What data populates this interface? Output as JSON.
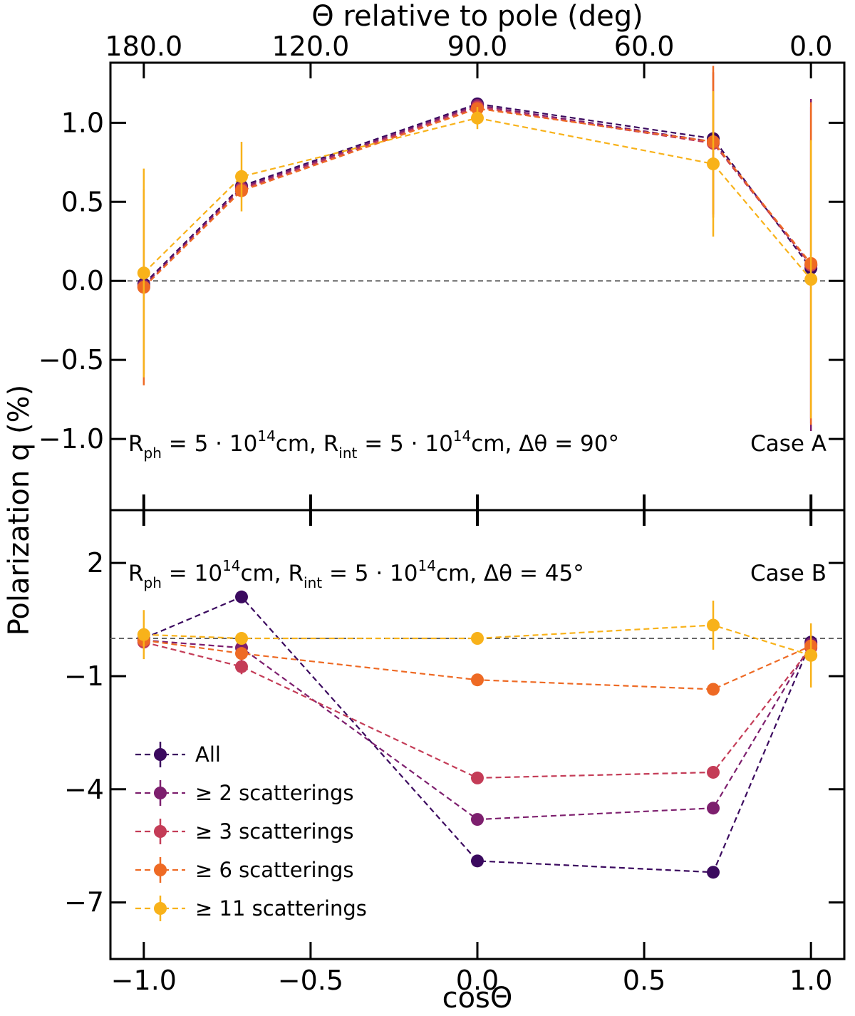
{
  "chart_data": {
    "type": "line",
    "xlabel": "cosΘ",
    "ylabel": "Polarization q (%)",
    "top_axis_label": "Θ relative to pole (deg)",
    "x": [
      -1.0,
      -0.707,
      0.0,
      0.707,
      1.0
    ],
    "xlim": [
      -1.1,
      1.1
    ],
    "x_ticks": [
      -1.0,
      -0.5,
      0.0,
      0.5,
      1.0
    ],
    "x_tick_labels": [
      "−1.0",
      "−0.5",
      "0.0",
      "0.5",
      "1.0"
    ],
    "top_ticks": [
      {
        "label": "180.0",
        "at": -1.0
      },
      {
        "label": "120.0",
        "at": -0.5
      },
      {
        "label": "90.0",
        "at": 0.0
      },
      {
        "label": "60.0",
        "at": 0.5
      },
      {
        "label": "0.0",
        "at": 1.0
      }
    ],
    "legend": {
      "position": "lower-left",
      "entries": [
        "All",
        "≥ 2 scatterings",
        "≥ 3 scatterings",
        "≥ 6 scatterings",
        "≥ 11 scatterings"
      ]
    },
    "series_colors": [
      "#3b0a5f",
      "#7d1f6e",
      "#c43c57",
      "#ee6a24",
      "#f8b21a"
    ],
    "panels": [
      {
        "name": "Case A",
        "ylim": [
          -1.45,
          1.38
        ],
        "y_ticks": [
          -1.0,
          -0.5,
          0.0,
          0.5,
          1.0
        ],
        "y_tick_labels": [
          "−1.0",
          "−0.5",
          "0.0",
          "0.5",
          "1.0"
        ],
        "annotation_parts": [
          "R",
          "ph",
          " = 5 · 10",
          "14",
          "cm,  R",
          "int",
          " = 5 · 10",
          "14",
          "cm,  Δθ = 90°"
        ],
        "case_label": "Case A",
        "series": [
          {
            "name": "All",
            "values": [
              -0.02,
              0.6,
              1.12,
              0.9,
              0.08
            ],
            "errors": [
              0.0,
              0.0,
              0.0,
              0.0,
              0.0
            ]
          },
          {
            "name": "≥ 2 scatterings",
            "values": [
              -0.03,
              0.59,
              1.11,
              0.88,
              0.1
            ],
            "errors": [
              0.0,
              0.0,
              0.0,
              0.0,
              1.05
            ]
          },
          {
            "name": "≥ 3 scatterings",
            "values": [
              -0.04,
              0.58,
              1.1,
              0.87,
              0.1
            ],
            "errors": [
              0.55,
              0.0,
              0.0,
              0.45,
              1.0
            ]
          },
          {
            "name": "≥ 6 scatterings",
            "values": [
              -0.04,
              0.57,
              1.09,
              0.88,
              0.11
            ],
            "errors": [
              0.62,
              0.0,
              0.0,
              0.48,
              1.02
            ]
          },
          {
            "name": "≥ 11 scatterings",
            "values": [
              0.05,
              0.66,
              1.03,
              0.74,
              0.01
            ],
            "errors": [
              0.66,
              0.22,
              0.07,
              0.46,
              0.88
            ]
          }
        ]
      },
      {
        "name": "Case B",
        "ylim": [
          -8.5,
          3.4
        ],
        "y_ticks": [
          2,
          -1,
          -4,
          -7
        ],
        "y_tick_labels": [
          "2",
          "−1",
          "−4",
          "−7"
        ],
        "annotation_parts": [
          "R",
          "ph",
          " = 10",
          "14",
          "cm,  R",
          "int",
          " = 5 · 10",
          "14",
          "cm,  Δθ = 45°"
        ],
        "case_label": "Case B",
        "series": [
          {
            "name": "All",
            "values": [
              0.0,
              1.1,
              -5.9,
              -6.2,
              -0.1
            ],
            "errors": [
              0.0,
              0.15,
              0.0,
              0.0,
              0.0
            ]
          },
          {
            "name": "≥ 2 scatterings",
            "values": [
              -0.05,
              -0.25,
              -4.8,
              -4.5,
              -0.15
            ],
            "errors": [
              0.0,
              0.0,
              0.0,
              0.0,
              0.0
            ]
          },
          {
            "name": "≥ 3 scatterings",
            "values": [
              -0.1,
              -0.75,
              -3.7,
              -3.55,
              -0.25
            ],
            "errors": [
              0.0,
              0.2,
              0.0,
              0.0,
              0.0
            ]
          },
          {
            "name": "≥ 6 scatterings",
            "values": [
              -0.05,
              -0.4,
              -1.1,
              -1.35,
              -0.2
            ],
            "errors": [
              0.0,
              0.0,
              0.0,
              0.0,
              0.0
            ]
          },
          {
            "name": "≥ 11 scatterings",
            "values": [
              0.1,
              0.0,
              0.0,
              0.35,
              -0.45
            ],
            "errors": [
              0.65,
              0.0,
              0.0,
              0.65,
              0.85
            ]
          }
        ]
      }
    ]
  }
}
